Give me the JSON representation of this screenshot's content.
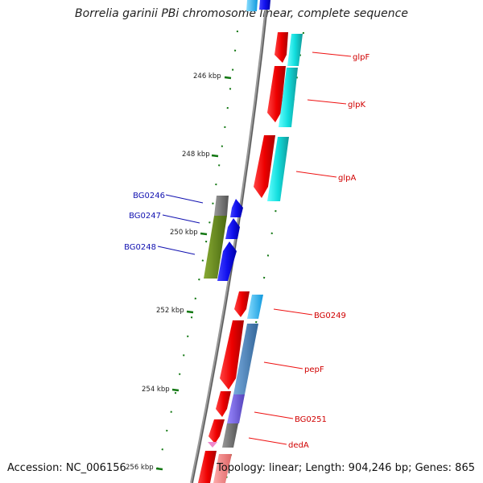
{
  "title": "Borrelia garinii PBi chromosome linear, complete sequence",
  "footer": {
    "accession": "Accession: NC_006156",
    "topology": "Topology: linear; Length: 904,246 bp; Genes: 865"
  },
  "scale_ticks": [
    "246 kbp",
    "248 kbp",
    "250 kbp",
    "252 kbp",
    "254 kbp",
    "256 kbp"
  ],
  "gene_labels_right": [
    "glpF",
    "glpK",
    "glpA",
    "BG0249",
    "pepF",
    "BG0251",
    "dedA"
  ],
  "gene_labels_left": [
    "BG0246",
    "BG0247",
    "BG0248"
  ],
  "colors": {
    "forward_cds": "#ee1111",
    "cyan_feature": "#11dddd",
    "blue_cds": "#1a1aee",
    "olive_feature": "#6a8a22",
    "gray_feature": "#777777",
    "steelblue_feature": "#5588bb",
    "purple_feature": "#7766dd",
    "pink_feature": "#ee8888",
    "tick_green": "#117711",
    "backbone": "#888888"
  }
}
